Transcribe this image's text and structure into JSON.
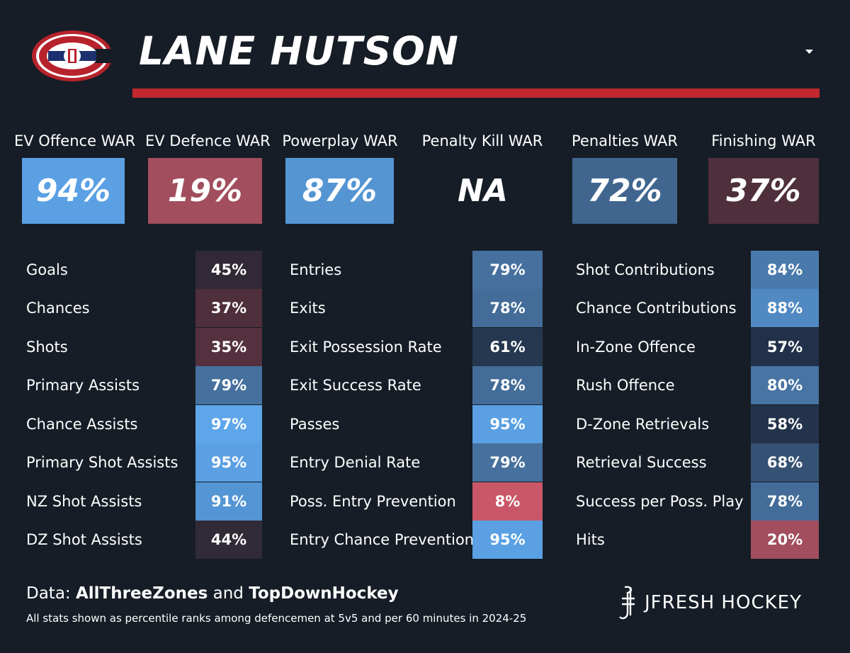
{
  "header": {
    "player_name": "LANE HUTSON",
    "team_logo": "montreal-canadiens-logo",
    "menu_icon": "caret-down-icon",
    "accent_color": "#c1272d"
  },
  "war_metrics": [
    {
      "label": "EV Offence WAR",
      "value": "94%"
    },
    {
      "label": "EV Defence WAR",
      "value": "19%"
    },
    {
      "label": "Powerplay WAR",
      "value": "87%"
    },
    {
      "label": "Penalty Kill WAR",
      "value": "NA"
    },
    {
      "label": "Penalties WAR",
      "value": "72%"
    },
    {
      "label": "Finishing WAR",
      "value": "37%"
    }
  ],
  "stat_columns": [
    [
      {
        "label": "Goals",
        "value": "45%"
      },
      {
        "label": "Chances",
        "value": "37%"
      },
      {
        "label": "Shots",
        "value": "35%"
      },
      {
        "label": "Primary Assists",
        "value": "79%"
      },
      {
        "label": "Chance Assists",
        "value": "97%"
      },
      {
        "label": "Primary Shot Assists",
        "value": "95%"
      },
      {
        "label": "NZ Shot Assists",
        "value": "91%"
      },
      {
        "label": "DZ Shot Assists",
        "value": "44%"
      }
    ],
    [
      {
        "label": "Entries",
        "value": "79%"
      },
      {
        "label": "Exits",
        "value": "78%"
      },
      {
        "label": "Exit Possession Rate",
        "value": "61%"
      },
      {
        "label": "Exit Success Rate",
        "value": "78%"
      },
      {
        "label": "Passes",
        "value": "95%"
      },
      {
        "label": "Entry Denial Rate",
        "value": "79%"
      },
      {
        "label": "Poss. Entry Prevention",
        "value": "8%"
      },
      {
        "label": "Entry Chance Prevention",
        "value": "95%"
      }
    ],
    [
      {
        "label": "Shot Contributions",
        "value": "84%"
      },
      {
        "label": "Chance Contributions",
        "value": "88%"
      },
      {
        "label": "In-Zone Offence",
        "value": "57%"
      },
      {
        "label": "Rush Offence",
        "value": "80%"
      },
      {
        "label": "D-Zone Retrievals",
        "value": "58%"
      },
      {
        "label": "Retrieval Success",
        "value": "68%"
      },
      {
        "label": "Success per Poss. Play",
        "value": "78%"
      },
      {
        "label": "Hits",
        "value": "20%"
      }
    ]
  ],
  "footer": {
    "data_prefix": "Data:",
    "source_1": "AllThreeZones",
    "joiner": "and",
    "source_2": "TopDownHockey",
    "note": "All stats shown as percentile ranks among defencemen at 5v5 and per 60 minutes in 2024-25",
    "brand": "JFRESH HOCKEY",
    "brand_icon": "jfresh-monogram-icon"
  }
}
